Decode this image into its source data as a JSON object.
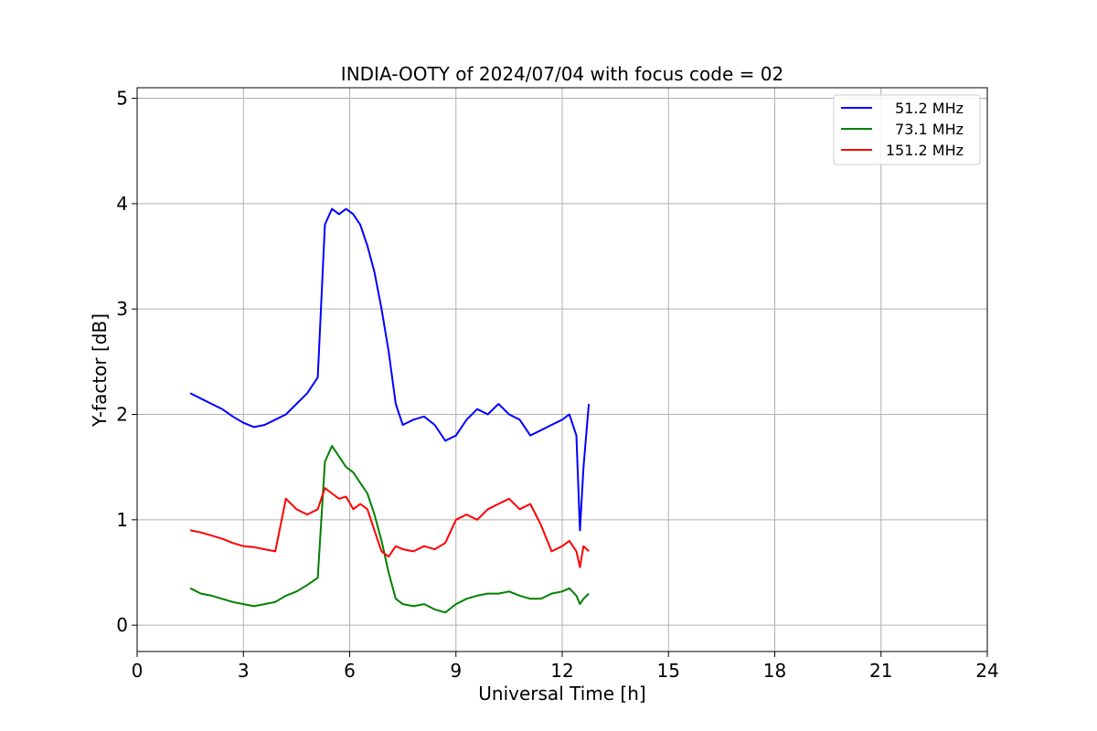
{
  "chart_data": {
    "type": "line",
    "title": "INDIA-OOTY of 2024/07/04 with focus code = 02",
    "xlabel": "Universal Time [h]",
    "ylabel": "Y-factor [dB]",
    "xlim": [
      0,
      24
    ],
    "ylim": [
      -0.25,
      5.1
    ],
    "xticks": [
      0,
      3,
      6,
      9,
      12,
      15,
      18,
      21,
      24
    ],
    "xtick_labels": [
      "0",
      "3",
      "6",
      "9",
      "12",
      "15",
      "18",
      "21",
      "24"
    ],
    "yticks": [
      0,
      1,
      2,
      3,
      4,
      5
    ],
    "ytick_labels": [
      "0",
      "1",
      "2",
      "3",
      "4",
      "5"
    ],
    "grid": true,
    "legend_position": "top-right",
    "series": [
      {
        "name": "51.2 MHz",
        "color": "#0000ff",
        "x": [
          1.5,
          1.8,
          2.1,
          2.4,
          2.7,
          3.0,
          3.3,
          3.6,
          3.9,
          4.2,
          4.5,
          4.8,
          5.1,
          5.3,
          5.5,
          5.7,
          5.9,
          6.1,
          6.3,
          6.5,
          6.7,
          6.9,
          7.1,
          7.3,
          7.5,
          7.8,
          8.1,
          8.4,
          8.7,
          9.0,
          9.3,
          9.6,
          9.9,
          10.2,
          10.5,
          10.8,
          11.1,
          11.4,
          11.7,
          12.0,
          12.2,
          12.4,
          12.5,
          12.6,
          12.75
        ],
        "y": [
          2.2,
          2.15,
          2.1,
          2.05,
          1.98,
          1.92,
          1.88,
          1.9,
          1.95,
          2.0,
          2.1,
          2.2,
          2.35,
          3.8,
          3.95,
          3.9,
          3.95,
          3.9,
          3.8,
          3.6,
          3.35,
          3.0,
          2.6,
          2.1,
          1.9,
          1.95,
          1.98,
          1.9,
          1.75,
          1.8,
          1.95,
          2.05,
          2.0,
          2.1,
          2.0,
          1.95,
          1.8,
          1.85,
          1.9,
          1.95,
          2.0,
          1.8,
          0.9,
          1.5,
          2.1
        ]
      },
      {
        "name": "73.1 MHz",
        "color": "#008000",
        "x": [
          1.5,
          1.8,
          2.1,
          2.4,
          2.7,
          3.0,
          3.3,
          3.6,
          3.9,
          4.2,
          4.5,
          4.8,
          5.1,
          5.3,
          5.5,
          5.7,
          5.9,
          6.1,
          6.3,
          6.5,
          6.7,
          6.9,
          7.1,
          7.3,
          7.5,
          7.8,
          8.1,
          8.4,
          8.7,
          9.0,
          9.3,
          9.6,
          9.9,
          10.2,
          10.5,
          10.8,
          11.1,
          11.4,
          11.7,
          12.0,
          12.2,
          12.4,
          12.5,
          12.6,
          12.75
        ],
        "y": [
          0.35,
          0.3,
          0.28,
          0.25,
          0.22,
          0.2,
          0.18,
          0.2,
          0.22,
          0.28,
          0.32,
          0.38,
          0.45,
          1.55,
          1.7,
          1.6,
          1.5,
          1.45,
          1.35,
          1.25,
          1.05,
          0.8,
          0.5,
          0.25,
          0.2,
          0.18,
          0.2,
          0.15,
          0.12,
          0.2,
          0.25,
          0.28,
          0.3,
          0.3,
          0.32,
          0.28,
          0.25,
          0.25,
          0.3,
          0.32,
          0.35,
          0.28,
          0.2,
          0.25,
          0.3
        ]
      },
      {
        "name": "151.2 MHz",
        "color": "#ff0000",
        "x": [
          1.5,
          1.8,
          2.1,
          2.4,
          2.7,
          3.0,
          3.3,
          3.6,
          3.9,
          4.2,
          4.5,
          4.8,
          5.1,
          5.3,
          5.5,
          5.7,
          5.9,
          6.1,
          6.3,
          6.5,
          6.7,
          6.9,
          7.1,
          7.3,
          7.5,
          7.8,
          8.1,
          8.4,
          8.7,
          9.0,
          9.3,
          9.6,
          9.9,
          10.2,
          10.5,
          10.8,
          11.1,
          11.4,
          11.7,
          12.0,
          12.2,
          12.4,
          12.5,
          12.6,
          12.75
        ],
        "y": [
          0.9,
          0.88,
          0.85,
          0.82,
          0.78,
          0.75,
          0.74,
          0.72,
          0.7,
          1.2,
          1.1,
          1.05,
          1.1,
          1.3,
          1.25,
          1.2,
          1.22,
          1.1,
          1.15,
          1.1,
          0.9,
          0.7,
          0.65,
          0.75,
          0.72,
          0.7,
          0.75,
          0.72,
          0.78,
          1.0,
          1.05,
          1.0,
          1.1,
          1.15,
          1.2,
          1.1,
          1.15,
          0.95,
          0.7,
          0.75,
          0.8,
          0.7,
          0.55,
          0.75,
          0.7
        ]
      }
    ]
  }
}
